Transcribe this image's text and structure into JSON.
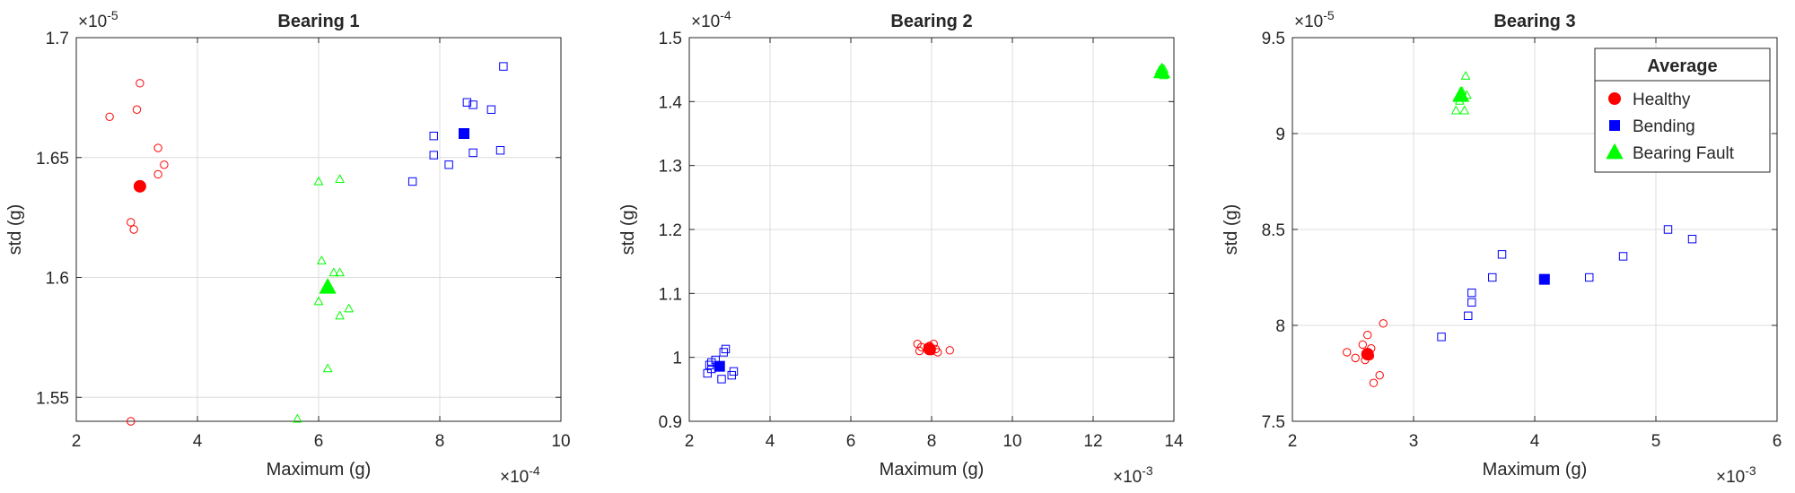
{
  "chart_data": [
    {
      "type": "scatter",
      "title": "Bearing 1",
      "xlabel": "Maximum (g)",
      "ylabel": "std (g)",
      "x_exponent_label": "×10",
      "x_exponent": "-4",
      "y_exponent_label": "×10",
      "y_exponent": "-5",
      "xlim": [
        2,
        10
      ],
      "ylim": [
        1.54,
        1.7
      ],
      "xticks": [
        2,
        4,
        6,
        8,
        10
      ],
      "xtick_labels": [
        "2",
        "4",
        "6",
        "8",
        "10"
      ],
      "yticks": [
        1.55,
        1.6,
        1.65,
        1.7
      ],
      "ytick_labels": [
        "1.55",
        "1.6",
        "1.65",
        "1.7"
      ],
      "grid": true,
      "series": [
        {
          "name": "Healthy",
          "marker": "circle",
          "color": "#ff0000",
          "points": [
            [
              2.55,
              1.667
            ],
            [
              3.05,
              1.681
            ],
            [
              3.0,
              1.67
            ],
            [
              3.35,
              1.654
            ],
            [
              3.45,
              1.647
            ],
            [
              3.35,
              1.643
            ],
            [
              2.9,
              1.623
            ],
            [
              2.95,
              1.62
            ],
            [
              2.9,
              1.54
            ]
          ],
          "average": [
            3.05,
            1.638
          ]
        },
        {
          "name": "Bending",
          "marker": "square",
          "color": "#0000ff",
          "points": [
            [
              9.05,
              1.688
            ],
            [
              8.45,
              1.673
            ],
            [
              8.55,
              1.672
            ],
            [
              8.85,
              1.67
            ],
            [
              7.9,
              1.659
            ],
            [
              7.9,
              1.651
            ],
            [
              8.55,
              1.652
            ],
            [
              9.0,
              1.653
            ],
            [
              8.15,
              1.647
            ],
            [
              7.55,
              1.64
            ]
          ],
          "average": [
            8.4,
            1.66
          ]
        },
        {
          "name": "Bearing Fault",
          "marker": "triangle",
          "color": "#00ff00",
          "points": [
            [
              6.0,
              1.64
            ],
            [
              6.35,
              1.641
            ],
            [
              6.05,
              1.607
            ],
            [
              6.25,
              1.602
            ],
            [
              6.35,
              1.602
            ],
            [
              6.0,
              1.59
            ],
            [
              6.5,
              1.587
            ],
            [
              6.35,
              1.584
            ],
            [
              6.15,
              1.562
            ],
            [
              5.65,
              1.541
            ]
          ],
          "average": [
            6.15,
            1.596
          ]
        }
      ]
    },
    {
      "type": "scatter",
      "title": "Bearing 2",
      "xlabel": "Maximum (g)",
      "ylabel": "std (g)",
      "x_exponent_label": "×10",
      "x_exponent": "-3",
      "y_exponent_label": "×10",
      "y_exponent": "-4",
      "xlim": [
        2,
        14
      ],
      "ylim": [
        0.9,
        1.5
      ],
      "xticks": [
        2,
        4,
        6,
        8,
        10,
        12,
        14
      ],
      "xtick_labels": [
        "2",
        "4",
        "6",
        "8",
        "10",
        "12",
        "14"
      ],
      "yticks": [
        0.9,
        1.0,
        1.1,
        1.2,
        1.3,
        1.4,
        1.5
      ],
      "ytick_labels": [
        "0.9",
        "1",
        "1.1",
        "1.2",
        "1.3",
        "1.4",
        "1.5"
      ],
      "grid": true,
      "series": [
        {
          "name": "Healthy",
          "marker": "circle",
          "color": "#ff0000",
          "points": [
            [
              7.65,
              1.021
            ],
            [
              7.75,
              1.016
            ],
            [
              7.7,
              1.01
            ],
            [
              7.9,
              1.016
            ],
            [
              8.05,
              1.021
            ],
            [
              8.1,
              1.013
            ],
            [
              8.15,
              1.008
            ],
            [
              8.45,
              1.011
            ],
            [
              7.95,
              1.018
            ],
            [
              8.0,
              1.01
            ]
          ],
          "average": [
            7.95,
            1.013
          ]
        },
        {
          "name": "Bending",
          "marker": "square",
          "color": "#0000ff",
          "points": [
            [
              2.55,
              0.992
            ],
            [
              2.65,
              0.996
            ],
            [
              2.5,
              0.988
            ],
            [
              2.45,
              0.975
            ],
            [
              2.55,
              0.982
            ],
            [
              2.85,
              1.008
            ],
            [
              2.9,
              1.013
            ],
            [
              3.1,
              0.978
            ],
            [
              3.05,
              0.972
            ],
            [
              2.8,
              0.966
            ]
          ],
          "average": [
            2.75,
            0.986
          ]
        },
        {
          "name": "Bearing Fault",
          "marker": "triangle",
          "color": "#00ff00",
          "points": [
            [
              13.65,
              1.449
            ],
            [
              13.75,
              1.451
            ],
            [
              13.7,
              1.445
            ],
            [
              13.65,
              1.443
            ],
            [
              13.75,
              1.441
            ],
            [
              13.7,
              1.447
            ]
          ],
          "average": [
            13.7,
            1.447
          ]
        }
      ]
    },
    {
      "type": "scatter",
      "title": "Bearing 3",
      "xlabel": "Maximum (g)",
      "ylabel": "std (g)",
      "x_exponent_label": "×10",
      "x_exponent": "-3",
      "y_exponent_label": "×10",
      "y_exponent": "-5",
      "xlim": [
        2,
        6
      ],
      "ylim": [
        7.5,
        9.5
      ],
      "xticks": [
        2,
        3,
        4,
        5,
        6
      ],
      "xtick_labels": [
        "2",
        "3",
        "4",
        "5",
        "6"
      ],
      "yticks": [
        7.5,
        8.0,
        8.5,
        9.0,
        9.5
      ],
      "ytick_labels": [
        "7.5",
        "8",
        "8.5",
        "9",
        "9.5"
      ],
      "grid": true,
      "legend": {
        "title": "Average",
        "position": "top-right",
        "entries": [
          "Healthy",
          "Bending",
          "Bearing Fault"
        ]
      },
      "series": [
        {
          "name": "Healthy",
          "marker": "circle",
          "color": "#ff0000",
          "points": [
            [
              2.45,
              7.86
            ],
            [
              2.52,
              7.83
            ],
            [
              2.58,
              7.9
            ],
            [
              2.62,
              7.95
            ],
            [
              2.65,
              7.88
            ],
            [
              2.75,
              8.01
            ],
            [
              2.6,
              7.82
            ],
            [
              2.64,
              7.84
            ],
            [
              2.72,
              7.74
            ],
            [
              2.67,
              7.7
            ]
          ],
          "average": [
            2.62,
            7.85
          ]
        },
        {
          "name": "Bending",
          "marker": "square",
          "color": "#0000ff",
          "points": [
            [
              3.23,
              7.94
            ],
            [
              3.45,
              8.05
            ],
            [
              3.48,
              8.12
            ],
            [
              3.48,
              8.17
            ],
            [
              3.65,
              8.25
            ],
            [
              3.73,
              8.37
            ],
            [
              4.45,
              8.25
            ],
            [
              4.73,
              8.36
            ],
            [
              5.1,
              8.5
            ],
            [
              5.3,
              8.45
            ]
          ],
          "average": [
            4.08,
            8.24
          ]
        },
        {
          "name": "Bearing Fault",
          "marker": "triangle",
          "color": "#00ff00",
          "points": [
            [
              3.43,
              9.3
            ],
            [
              3.4,
              9.22
            ],
            [
              3.44,
              9.2
            ],
            [
              3.38,
              9.17
            ],
            [
              3.35,
              9.12
            ],
            [
              3.42,
              9.12
            ],
            [
              3.37,
              9.19
            ]
          ],
          "average": [
            3.39,
            9.2
          ]
        }
      ]
    }
  ]
}
